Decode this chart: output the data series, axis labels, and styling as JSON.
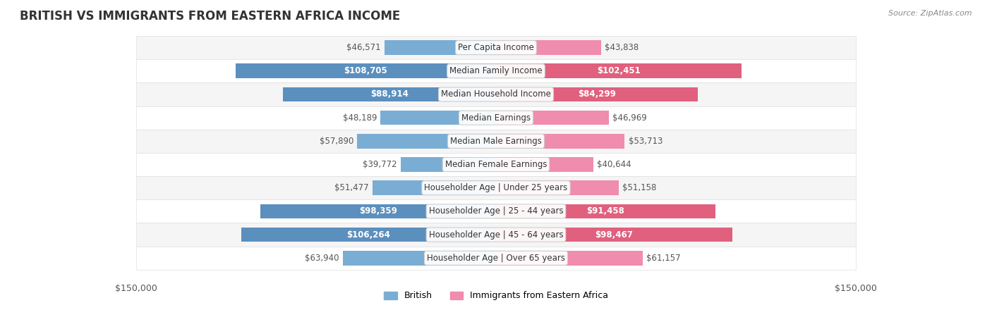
{
  "title": "BRITISH VS IMMIGRANTS FROM EASTERN AFRICA INCOME",
  "source": "Source: ZipAtlas.com",
  "categories": [
    "Per Capita Income",
    "Median Family Income",
    "Median Household Income",
    "Median Earnings",
    "Median Male Earnings",
    "Median Female Earnings",
    "Householder Age | Under 25 years",
    "Householder Age | 25 - 44 years",
    "Householder Age | 45 - 64 years",
    "Householder Age | Over 65 years"
  ],
  "british_values": [
    46571,
    108705,
    88914,
    48189,
    57890,
    39772,
    51477,
    98359,
    106264,
    63940
  ],
  "immigrant_values": [
    43838,
    102451,
    84299,
    46969,
    53713,
    40644,
    51158,
    91458,
    98467,
    61157
  ],
  "british_color": "#7aadd4",
  "british_color_bold": "#5b8fbe",
  "immigrant_color": "#f08cad",
  "immigrant_color_bold": "#e0607e",
  "max_value": 150000,
  "row_bg_color": "#f0f0f0",
  "row_bg_alt": "#ffffff",
  "label_fontsize": 8.5,
  "title_fontsize": 12,
  "value_threshold": 80000,
  "legend_british": "British",
  "legend_immigrant": "Immigrants from Eastern Africa"
}
